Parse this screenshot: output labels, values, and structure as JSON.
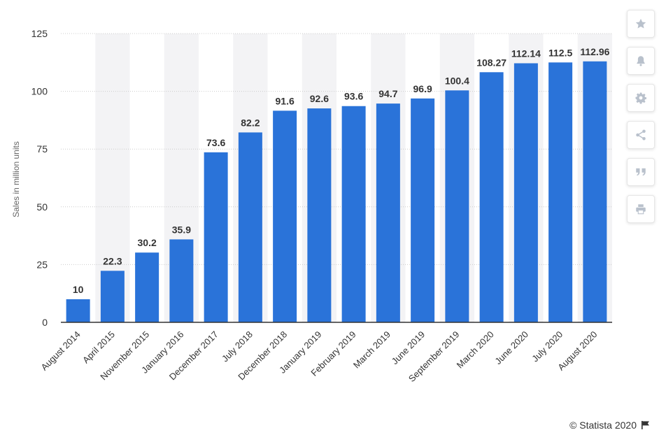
{
  "chart_data": {
    "type": "bar",
    "categories": [
      "August 2014",
      "April 2015",
      "November 2015",
      "January 2016",
      "December 2017",
      "July 2018",
      "December 2018",
      "January 2019",
      "February 2019",
      "March 2019",
      "June 2019",
      "September 2019",
      "March 2020",
      "June 2020",
      "July 2020",
      "August 2020"
    ],
    "values": [
      10,
      22.3,
      30.2,
      35.9,
      73.6,
      82.2,
      91.6,
      92.6,
      93.6,
      94.7,
      96.9,
      100.4,
      108.27,
      112.14,
      112.5,
      112.96
    ],
    "value_labels": [
      "10",
      "22.3",
      "30.2",
      "35.9",
      "73.6",
      "82.2",
      "91.6",
      "92.6",
      "93.6",
      "94.7",
      "96.9",
      "100.4",
      "108.27",
      "112.14",
      "112.5",
      "112.96"
    ],
    "ylabel": "Sales in million units",
    "xlabel": "",
    "ylim": [
      0,
      125
    ],
    "yticks": [
      0,
      25,
      50,
      75,
      100,
      125
    ],
    "grid": true,
    "bar_color": "#2a73d9"
  },
  "toolbar": {
    "icons": [
      "star-icon",
      "bell-icon",
      "gear-icon",
      "share-icon",
      "quote-icon",
      "print-icon"
    ],
    "icon_color": "#b9c1cc"
  },
  "credit": {
    "text": "© Statista 2020"
  }
}
